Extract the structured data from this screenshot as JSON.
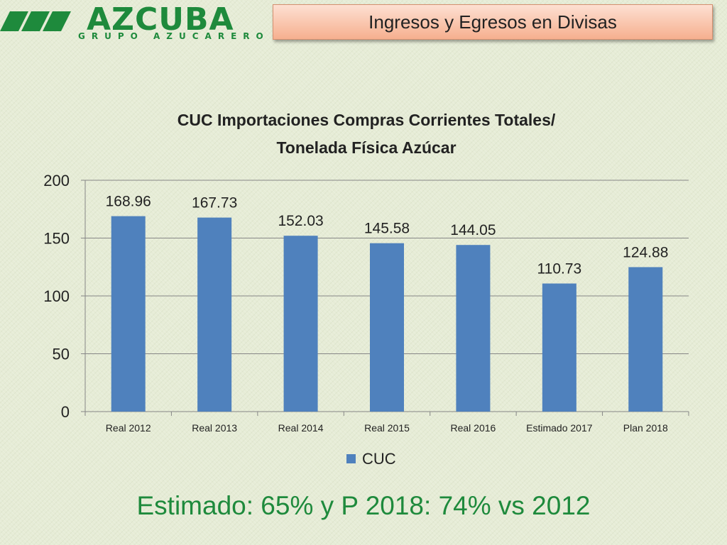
{
  "header": {
    "logo_text": "AZCUBA",
    "logo_subtext": "GRUPO AZUCARERO",
    "slide_title": "Ingresos y Egresos en Divisas"
  },
  "footer": {
    "summary": "Estimado: 65% y P 2018: 74% vs 2012"
  },
  "colors": {
    "bar": "#4f81bd",
    "accent_green": "#1e8a3c",
    "gridline": "#868686"
  },
  "chart_data": {
    "type": "bar",
    "title": "CUC Importaciones Compras Corrientes Totales/",
    "title_line2": "Tonelada Física Azúcar",
    "categories": [
      "Real 2012",
      "Real 2013",
      "Real 2014",
      "Real 2015",
      "Real 2016",
      "Estimado 2017",
      "Plan 2018"
    ],
    "series": [
      {
        "name": "CUC",
        "values": [
          168.96,
          167.73,
          152.03,
          145.58,
          144.05,
          110.73,
          124.88
        ]
      }
    ],
    "data_labels": [
      "168.96",
      "167.73",
      "152.03",
      "145.58",
      "144.05",
      "110.73",
      "124.88"
    ],
    "ylim": [
      0,
      200
    ],
    "yticks": [
      0,
      50,
      100,
      150,
      200
    ],
    "grid": true,
    "legend_position": "bottom"
  }
}
